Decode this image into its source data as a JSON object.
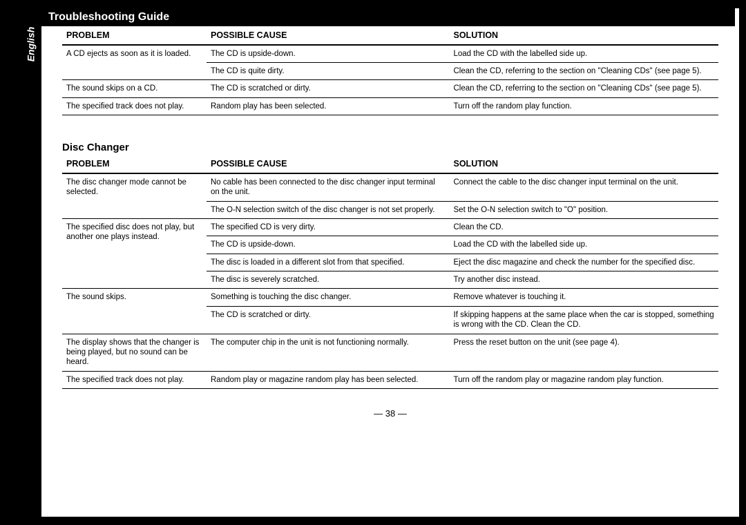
{
  "language_tab": "English",
  "page_title": "Troubleshooting Guide",
  "page_number": "— 38 —",
  "columns": {
    "problem": "PROBLEM",
    "cause": "POSSIBLE CAUSE",
    "solution": "SOLUTION"
  },
  "table1_rows": [
    {
      "problem": "A CD ejects as soon as it is loaded.",
      "cause": "The CD is upside-down.",
      "solution": "Load the CD with the labelled side up."
    },
    {
      "problem": "",
      "cause": "The CD is quite dirty.",
      "solution": "Clean the CD, referring to the section on \"Cleaning CDs\" (see page 5)."
    },
    {
      "problem": "The sound skips on a CD.",
      "cause": "The CD is scratched or dirty.",
      "solution": "Clean the CD, referring to the section on \"Cleaning CDs\" (see page 5)."
    },
    {
      "problem": "The specified track does not play.",
      "cause": "Random play has been selected.",
      "solution": "Turn off the random play function."
    }
  ],
  "section2_title": "Disc Changer",
  "table2_rows": [
    {
      "problem": "The disc changer mode cannot be selected.",
      "cause": "No cable has been connected to the disc changer input terminal on the unit.",
      "solution": "Connect the cable to the disc changer input terminal on the unit."
    },
    {
      "problem": "",
      "cause": "The O-N selection switch of the disc changer is not set properly.",
      "solution": "Set the O-N selection switch to \"O\" position."
    },
    {
      "problem": "The specified disc does not play, but another one plays instead.",
      "cause": "The specified CD is very dirty.",
      "solution": "Clean the CD."
    },
    {
      "problem": "",
      "cause": "The CD is upside-down.",
      "solution": "Load the CD with the labelled side up."
    },
    {
      "problem": "",
      "cause": "The disc is loaded in a different slot from that specified.",
      "solution": "Eject the disc magazine and check the number for the specified disc."
    },
    {
      "problem": "",
      "cause": "The disc is severely scratched.",
      "solution": "Try another disc instead."
    },
    {
      "problem": "The sound skips.",
      "cause": "Something is touching the disc changer.",
      "solution": "Remove whatever is touching it."
    },
    {
      "problem": "",
      "cause": "The CD is scratched or dirty.",
      "solution": "If skipping happens at the same place when the car is stopped, something is wrong with the CD. Clean the CD."
    },
    {
      "problem": "The display shows that the changer is being played, but no sound can be heard.",
      "cause": "The computer chip in the unit is not functioning normally.",
      "solution": "Press the reset button on the unit (see page 4)."
    },
    {
      "problem": "The specified track does not play.",
      "cause": "Random play or magazine random play has been selected.",
      "solution": "Turn off the random play or magazine random play function."
    }
  ]
}
